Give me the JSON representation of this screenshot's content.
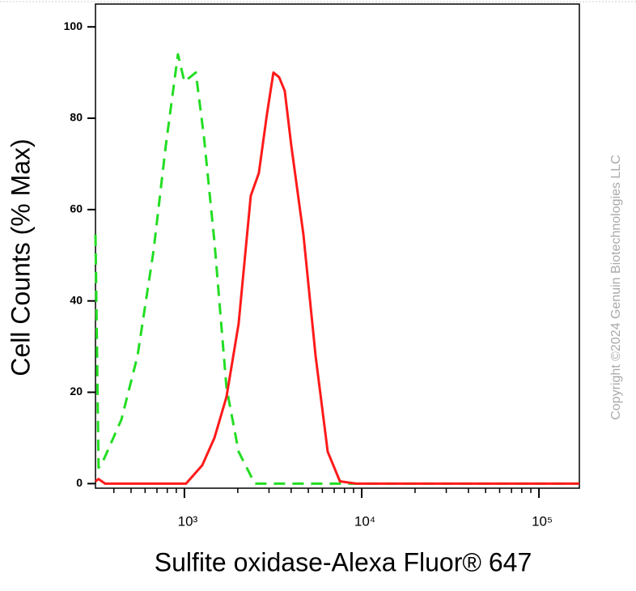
{
  "chart_data": {
    "type": "line",
    "x_label": "Sulfite oxidase-Alexa Fluor® 647",
    "y_label": "Cell Counts (% Max)",
    "annotation": "Copyright ©2024 Genuin Biotechnologies LLC",
    "xscale": "log",
    "xlim": [
      315,
      169000
    ],
    "ylim": [
      -1,
      105
    ],
    "xticks": [
      {
        "value": 1000,
        "label": "10³"
      },
      {
        "value": 10000,
        "label": "10⁴"
      },
      {
        "value": 100000,
        "label": "10⁵"
      }
    ],
    "xminorticks": [
      400,
      500,
      600,
      700,
      800,
      900,
      2000,
      3000,
      4000,
      5000,
      6000,
      7000,
      8000,
      9000,
      20000,
      30000,
      40000,
      50000,
      60000,
      70000,
      80000,
      90000
    ],
    "yticks": [
      0,
      20,
      40,
      60,
      80,
      100
    ],
    "series": [
      {
        "color": "#22dd22",
        "dash": "14,9",
        "x": [
          315,
          328,
          339,
          441,
          544,
          670,
          785,
          919,
          1000,
          1076,
          1159,
          1288,
          1476,
          1727,
          2022,
          2494,
          169000
        ],
        "values": [
          54.5,
          3.5,
          4,
          14,
          28,
          51,
          74,
          94,
          88,
          89,
          90,
          76,
          53,
          21,
          7,
          0,
          0
        ]
      },
      {
        "color": "#ff1a1a",
        "dash": "none",
        "x": [
          315,
          328,
          357,
          1021,
          1260,
          1476,
          1727,
          2022,
          2366,
          2630,
          2924,
          3178,
          3420,
          3681,
          4009,
          4690,
          5495,
          6430,
          7534,
          9290,
          169000
        ],
        "values": [
          0.5,
          1,
          0,
          0,
          4,
          10,
          19,
          35,
          63,
          68,
          81,
          90,
          89,
          86,
          74,
          54.5,
          28,
          7,
          0.5,
          0,
          0
        ]
      }
    ]
  }
}
